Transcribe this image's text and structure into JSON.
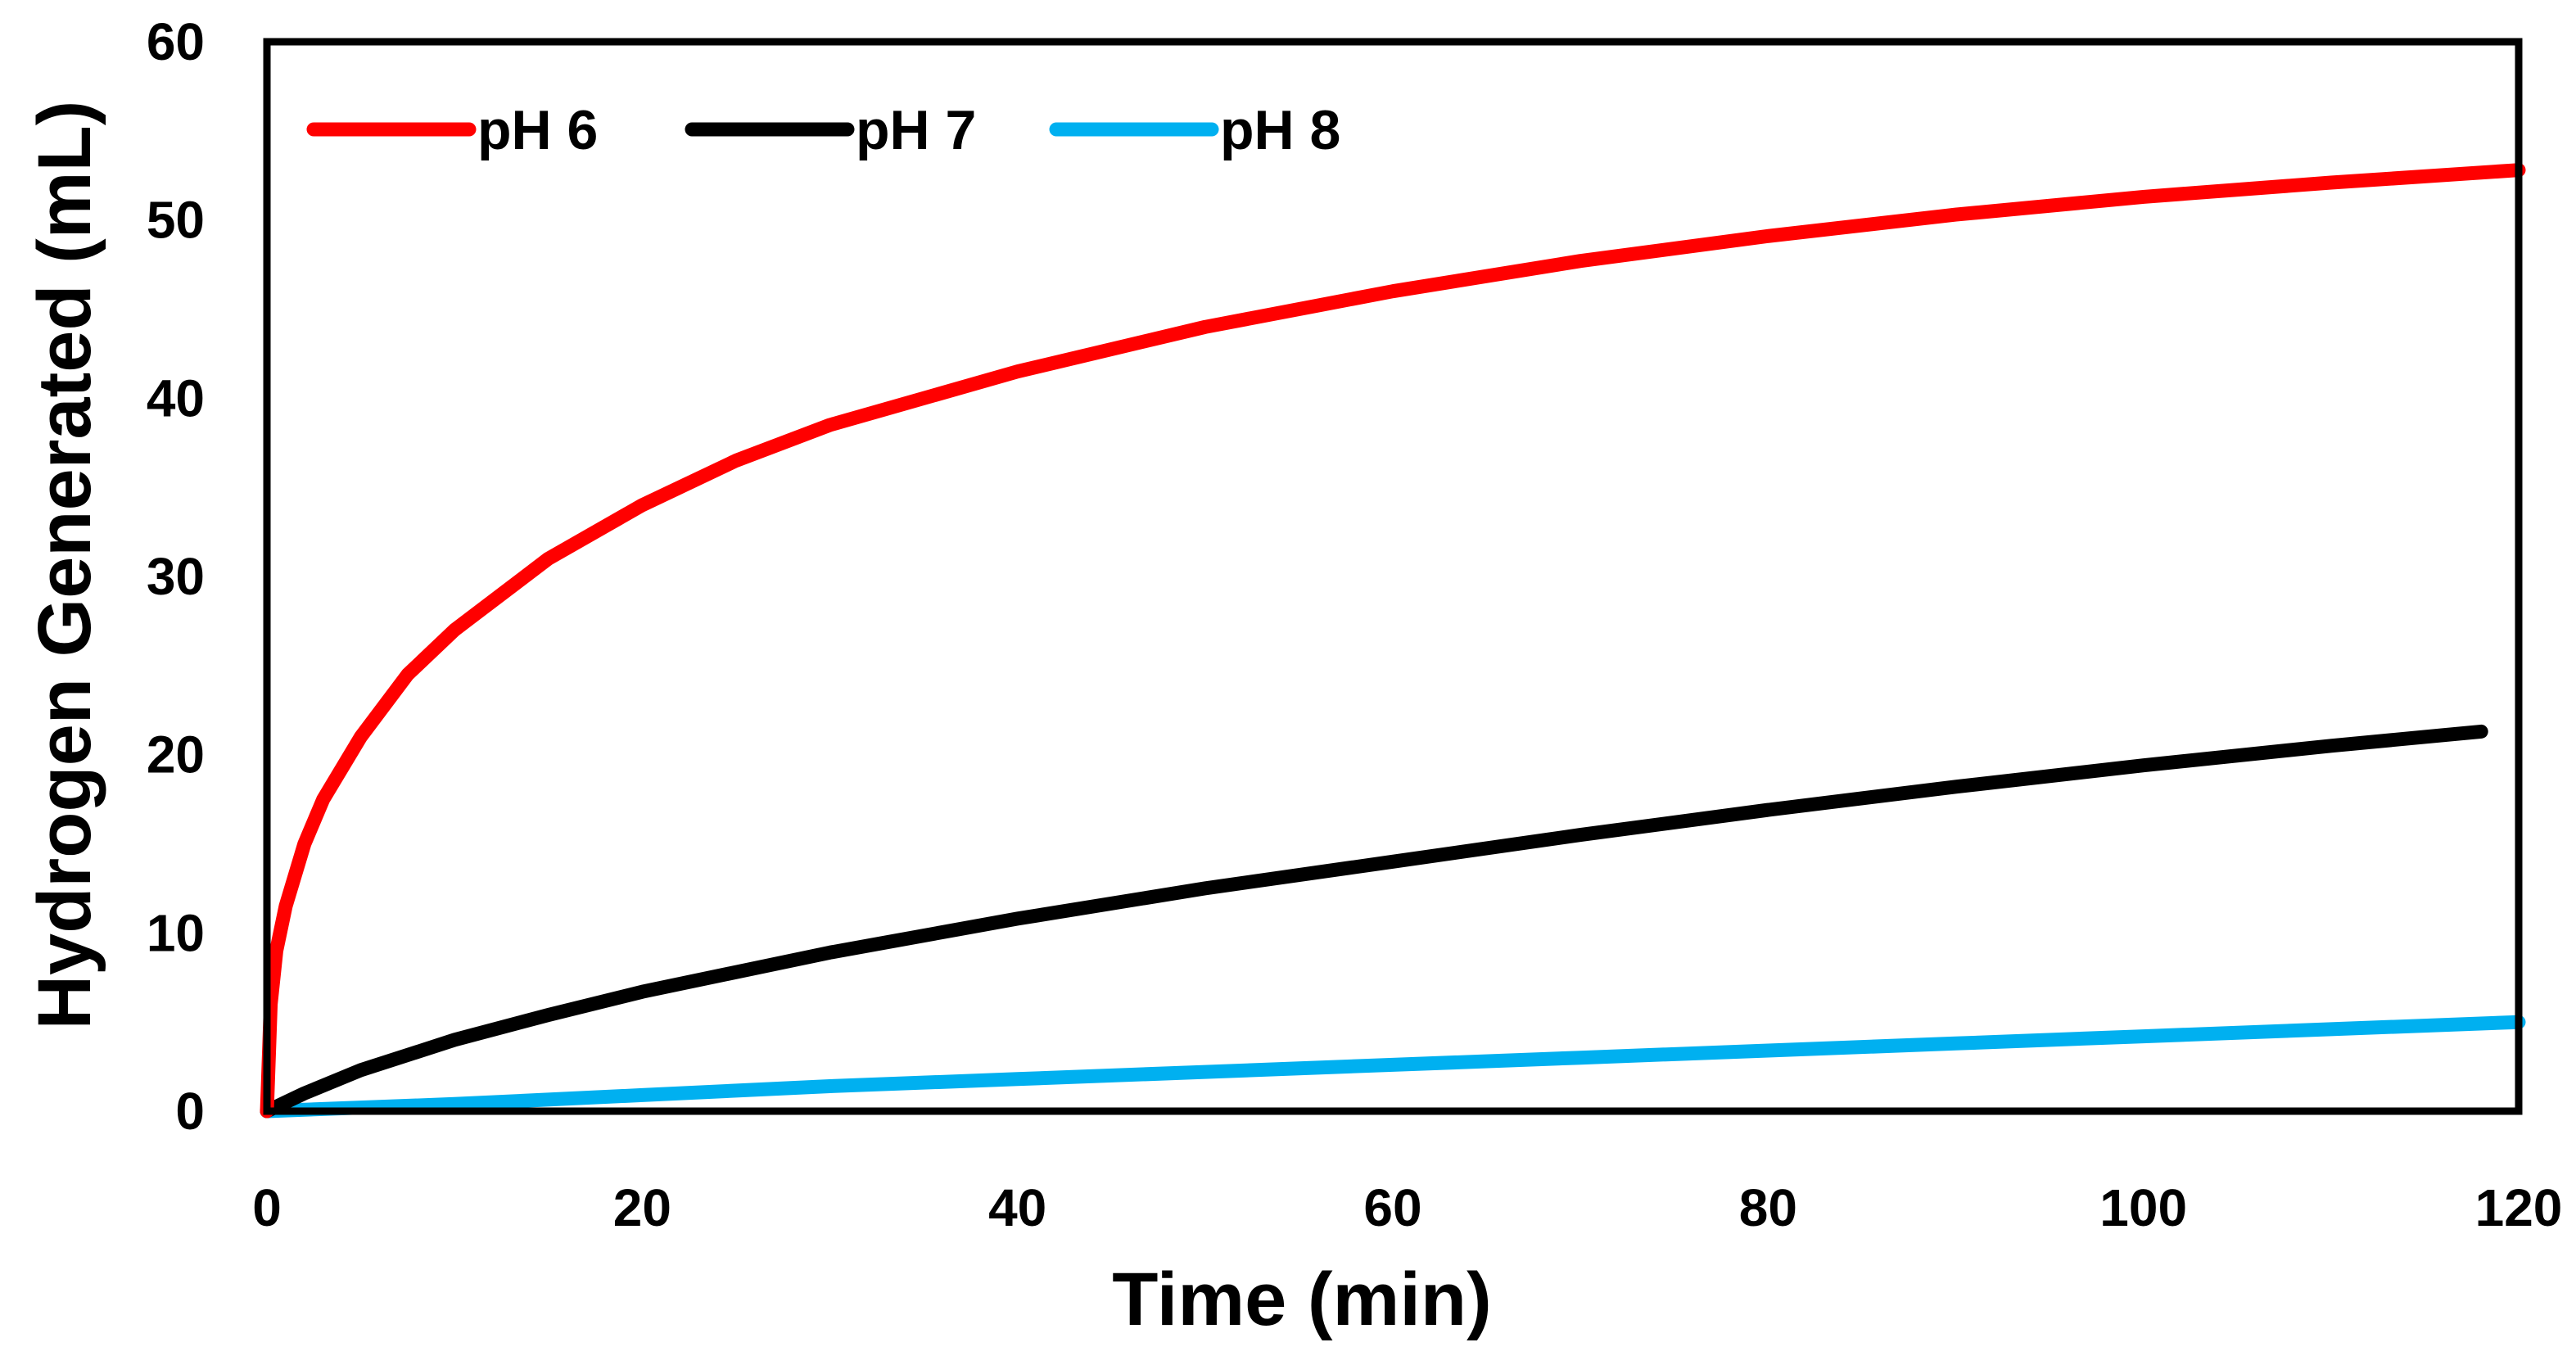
{
  "chart_data": {
    "type": "line",
    "title": "",
    "xlabel": "Time (min)",
    "ylabel": "Hydrogen Generated (mL)",
    "xlim": [
      0,
      120
    ],
    "ylim": [
      0,
      60
    ],
    "xticks": [
      "0",
      "20",
      "40",
      "60",
      "80",
      "100",
      "120"
    ],
    "yticks": [
      "0",
      "10",
      "20",
      "30",
      "40",
      "50",
      "60"
    ],
    "grid": false,
    "legend_position": "top-left",
    "series": [
      {
        "name": "pH 6",
        "color": "#ff0000",
        "x": [
          0,
          0.2,
          0.5,
          1,
          2,
          3,
          5,
          7.5,
          10,
          15,
          20,
          25,
          30,
          40,
          50,
          60,
          70,
          80,
          90,
          100,
          110,
          120
        ],
        "y": [
          0,
          6,
          9,
          11.5,
          15,
          17.5,
          21,
          24.5,
          27,
          31,
          34,
          36.5,
          38.5,
          41.5,
          44,
          46,
          47.7,
          49.1,
          50.3,
          51.3,
          52.1,
          52.8
        ]
      },
      {
        "name": "pH 7",
        "color": "#000000",
        "x": [
          0,
          1,
          2,
          5,
          10,
          15,
          20,
          30,
          40,
          50,
          60,
          70,
          80,
          90,
          100,
          110,
          118
        ],
        "y": [
          0,
          0.5,
          1,
          2.3,
          4,
          5.4,
          6.7,
          8.9,
          10.8,
          12.5,
          14,
          15.5,
          16.9,
          18.2,
          19.4,
          20.5,
          21.3
        ]
      },
      {
        "name": "pH 8",
        "color": "#00b0f0",
        "x": [
          0,
          10,
          20,
          30,
          40,
          50,
          60,
          70,
          80,
          90,
          100,
          110,
          120
        ],
        "y": [
          0,
          0.4,
          0.9,
          1.4,
          1.8,
          2.2,
          2.6,
          3,
          3.4,
          3.8,
          4.2,
          4.6,
          5
        ]
      }
    ]
  }
}
